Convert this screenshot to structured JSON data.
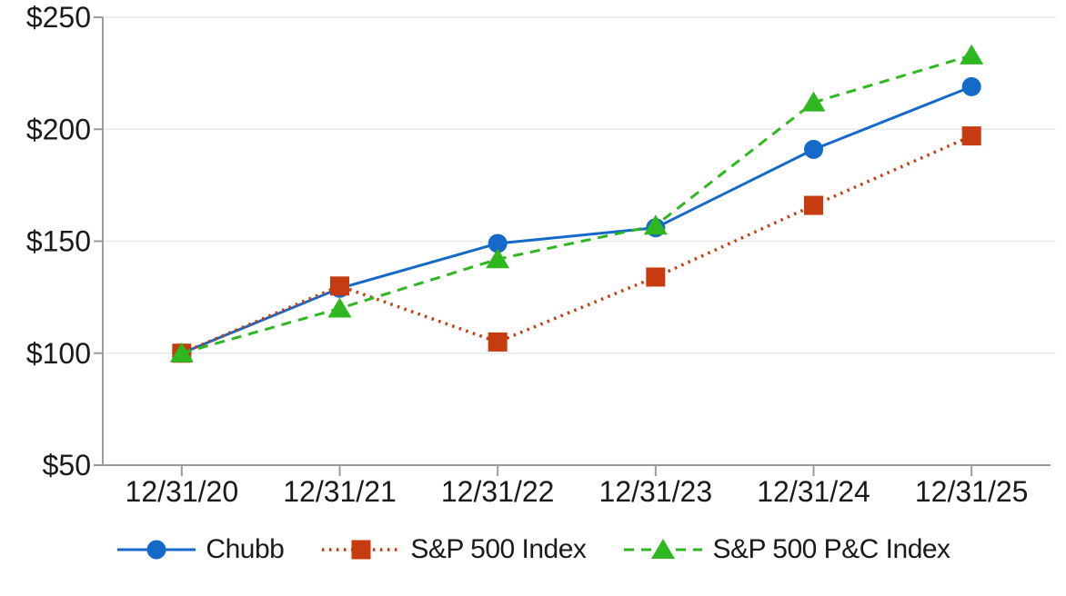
{
  "chart_data": {
    "type": "line",
    "title": "",
    "xlabel": "",
    "ylabel": "",
    "categories": [
      "12/31/20",
      "12/31/21",
      "12/31/22",
      "12/31/23",
      "12/31/24",
      "12/31/25"
    ],
    "series": [
      {
        "name": "Chubb",
        "marker": "circle",
        "line_style": "solid",
        "color": "#1569c8",
        "values": [
          100,
          129,
          149,
          156,
          191,
          219
        ]
      },
      {
        "name": "S&P 500 Index",
        "marker": "square",
        "line_style": "dotted",
        "color": "#c63b10",
        "values": [
          100,
          130,
          105,
          134,
          166,
          197
        ]
      },
      {
        "name": "S&P 500 P&C Index",
        "marker": "triangle",
        "line_style": "dashed",
        "color": "#2eb71f",
        "values": [
          100,
          120,
          142,
          157,
          212,
          233
        ]
      }
    ],
    "ylim": [
      50,
      250
    ],
    "yticks": [
      50,
      100,
      150,
      200,
      250
    ],
    "ytick_labels": [
      "$50",
      "$100",
      "$150",
      "$200",
      "$250"
    ],
    "grid": "horizontal",
    "legend_position": "bottom",
    "colors": {
      "axis": "#9b9b9b",
      "gridline": "#e9e9e9",
      "text": "#1a1a1a",
      "background": "#ffffff"
    }
  }
}
